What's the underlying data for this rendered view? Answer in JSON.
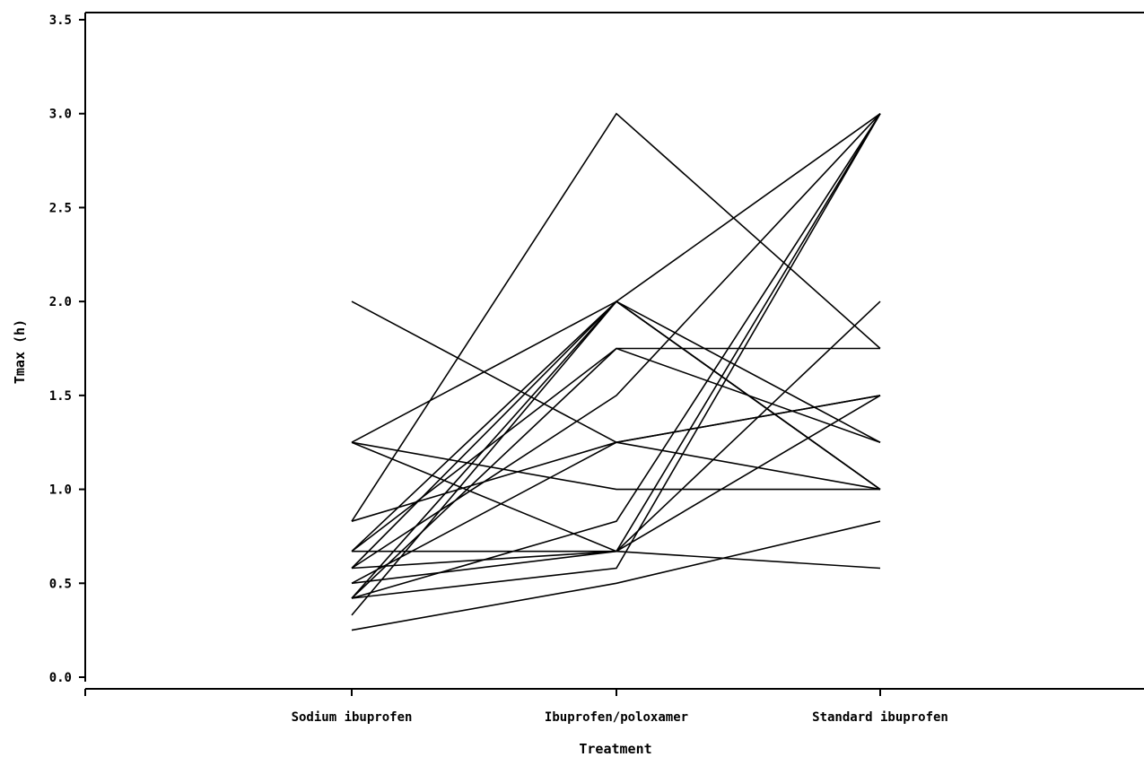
{
  "chart_data": {
    "type": "line",
    "title": "",
    "xlabel": "Treatment",
    "ylabel": "Tmax (h)",
    "categories": [
      "Sodium ibuprofen",
      "Ibuprofen/poloxamer",
      "Standard ibuprofen"
    ],
    "ylim": [
      0,
      3.5
    ],
    "yticks": [
      "0.0",
      "0.5",
      "1.0",
      "1.5",
      "2.0",
      "2.5",
      "3.0",
      "3.5"
    ],
    "grid": false,
    "legend": "none",
    "series": [
      {
        "values": [
          2.0,
          1.25,
          1.0
        ]
      },
      {
        "values": [
          1.25,
          2.0,
          1.25
        ]
      },
      {
        "values": [
          1.25,
          0.67,
          0.58
        ]
      },
      {
        "values": [
          1.25,
          1.0,
          1.0
        ]
      },
      {
        "values": [
          0.83,
          3.0,
          1.75
        ]
      },
      {
        "values": [
          0.83,
          1.25,
          1.5
        ]
      },
      {
        "values": [
          0.67,
          2.0,
          1.0
        ]
      },
      {
        "values": [
          0.67,
          0.67,
          3.0
        ]
      },
      {
        "values": [
          0.67,
          1.75,
          1.75
        ]
      },
      {
        "values": [
          0.58,
          2.0,
          1.0
        ]
      },
      {
        "values": [
          0.58,
          1.5,
          3.0
        ]
      },
      {
        "values": [
          0.58,
          0.67,
          1.5
        ]
      },
      {
        "values": [
          0.5,
          1.25,
          1.5
        ]
      },
      {
        "values": [
          0.5,
          0.67,
          2.0
        ]
      },
      {
        "values": [
          0.42,
          2.0,
          1.0
        ]
      },
      {
        "values": [
          0.42,
          1.75,
          1.25
        ]
      },
      {
        "values": [
          0.42,
          0.83,
          3.0
        ]
      },
      {
        "values": [
          0.42,
          0.58,
          3.0
        ]
      },
      {
        "values": [
          0.33,
          2.0,
          3.0
        ]
      },
      {
        "values": [
          0.25,
          0.5,
          0.83
        ]
      }
    ]
  }
}
